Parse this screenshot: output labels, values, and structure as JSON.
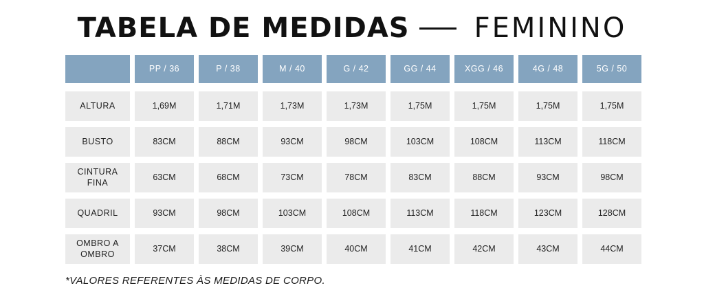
{
  "title": {
    "main": "TABELA DE MEDIDAS",
    "sub": "FEMININO"
  },
  "table": {
    "corner": "",
    "sizes": [
      "PP / 36",
      "P / 38",
      "M / 40",
      "G / 42",
      "GG / 44",
      "XGG / 46",
      "4G / 48",
      "5G / 50"
    ],
    "rows": [
      {
        "label": "ALTURA",
        "values": [
          "1,69M",
          "1,71M",
          "1,73M",
          "1,73M",
          "1,75M",
          "1,75M",
          "1,75M",
          "1,75M"
        ]
      },
      {
        "label": "BUSTO",
        "values": [
          "83CM",
          "88CM",
          "93CM",
          "98CM",
          "103CM",
          "108CM",
          "113CM",
          "118CM"
        ]
      },
      {
        "label": "CINTURA FINA",
        "values": [
          "63CM",
          "68CM",
          "73CM",
          "78CM",
          "83CM",
          "88CM",
          "93CM",
          "98CM"
        ]
      },
      {
        "label": "QUADRIL",
        "values": [
          "93CM",
          "98CM",
          "103CM",
          "108CM",
          "113CM",
          "118CM",
          "123CM",
          "128CM"
        ]
      },
      {
        "label": "OMBRO A OMBRO",
        "values": [
          "37CM",
          "38CM",
          "39CM",
          "40CM",
          "41CM",
          "42CM",
          "43CM",
          "44CM"
        ]
      }
    ]
  },
  "footnote": "*VALORES REFERENTES ÀS MEDIDAS DE CORPO.",
  "colors": {
    "header_bg": "#84a4bf",
    "cell_bg": "#ebebeb",
    "title": "#111111"
  }
}
